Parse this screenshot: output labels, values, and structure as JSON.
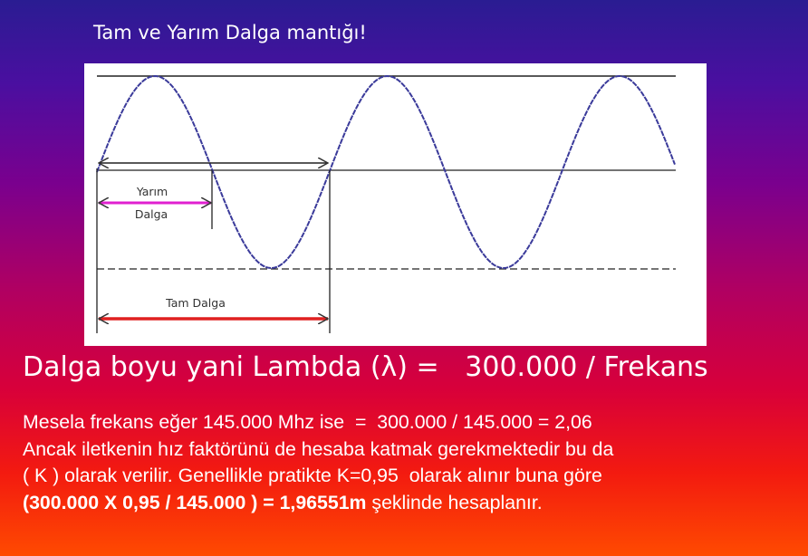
{
  "slide": {
    "title": "Tam ve  Yarım  Dalga mantığı!",
    "diagram": {
      "half_wave_label_line1": "Yarım",
      "half_wave_label_line2": "Dalga",
      "full_wave_label": "Tam Dalga",
      "colors": {
        "wave": "#3a3a9a",
        "half_wave_arrow": "#e020d0",
        "full_wave_arrow": "#e02020",
        "lines": "#222222"
      }
    },
    "formula": "Dalga boyu yani Lambda (λ) =   300.000 / Frekans",
    "paragraph": {
      "line1": "Mesela frekans eğer 145.000 Mhz ise  =  300.000 / 145.000 = 2,06",
      "line2": "Ancak iletkenin hız faktörünü de hesaba katmak gerekmektedir bu da",
      "line3": "( K ) olarak verilir. Genellikle pratikte K=0,95  olarak alınır buna göre",
      "line4_bold": "(300.000 X 0,95 / 145.000 ) = 1,96551m",
      "line4_rest": " şeklinde hesaplanır."
    }
  }
}
